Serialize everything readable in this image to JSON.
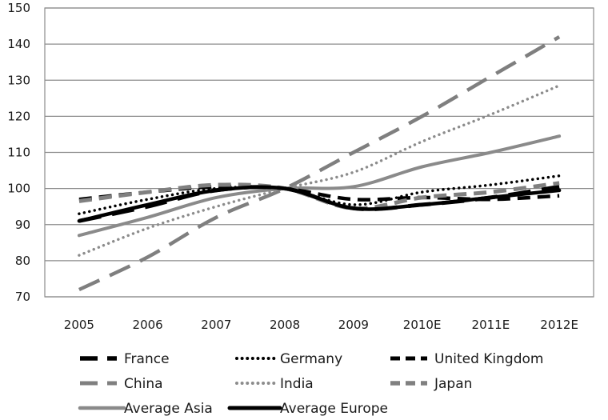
{
  "chart_data": {
    "type": "line",
    "categories": [
      "2005",
      "2006",
      "2007",
      "2008",
      "2009",
      "2010E",
      "2011E",
      "2012E"
    ],
    "ylim": [
      70,
      150
    ],
    "yticks": [
      70,
      80,
      90,
      100,
      110,
      120,
      130,
      140,
      150
    ],
    "grid": "horizontal",
    "legend_position": "bottom",
    "series": [
      {
        "name": "France",
        "values": [
          91,
          95,
          99.5,
          100,
          94.5,
          95.5,
          97.5,
          100.5
        ],
        "color": "#000000",
        "style": "long-dash",
        "width": 5
      },
      {
        "name": "Germany",
        "values": [
          93,
          97,
          100,
          100,
          95.5,
          99,
          101,
          103.5
        ],
        "color": "#000000",
        "style": "dotted",
        "width": 3.5
      },
      {
        "name": "United Kingdom",
        "values": [
          97,
          99,
          100.5,
          100,
          97,
          97.5,
          97,
          98
        ],
        "color": "#000000",
        "style": "dash",
        "width": 4.5
      },
      {
        "name": "China",
        "values": [
          72,
          81,
          92,
          100,
          110,
          120,
          131,
          142
        ],
        "color": "#7f7f7f",
        "style": "long-dash",
        "width": 4.5
      },
      {
        "name": "India",
        "values": [
          81.5,
          89,
          95,
          100,
          104.5,
          113,
          120.5,
          128.5
        ],
        "color": "#8c8c8c",
        "style": "dotted",
        "width": 3.5
      },
      {
        "name": "Japan",
        "values": [
          96.5,
          99,
          101,
          100,
          94.5,
          97.5,
          99,
          101.5
        ],
        "color": "#808080",
        "style": "dash",
        "width": 5
      },
      {
        "name": "Average Asia",
        "values": [
          87,
          92,
          97.5,
          100,
          100.5,
          106,
          110,
          114.5
        ],
        "color": "#8a8a8a",
        "style": "solid",
        "width": 4
      },
      {
        "name": "Average Europe",
        "values": [
          91,
          95.5,
          99.5,
          100,
          94.5,
          95.5,
          97.5,
          99.5
        ],
        "color": "#000000",
        "style": "solid",
        "width": 4.5
      }
    ]
  }
}
